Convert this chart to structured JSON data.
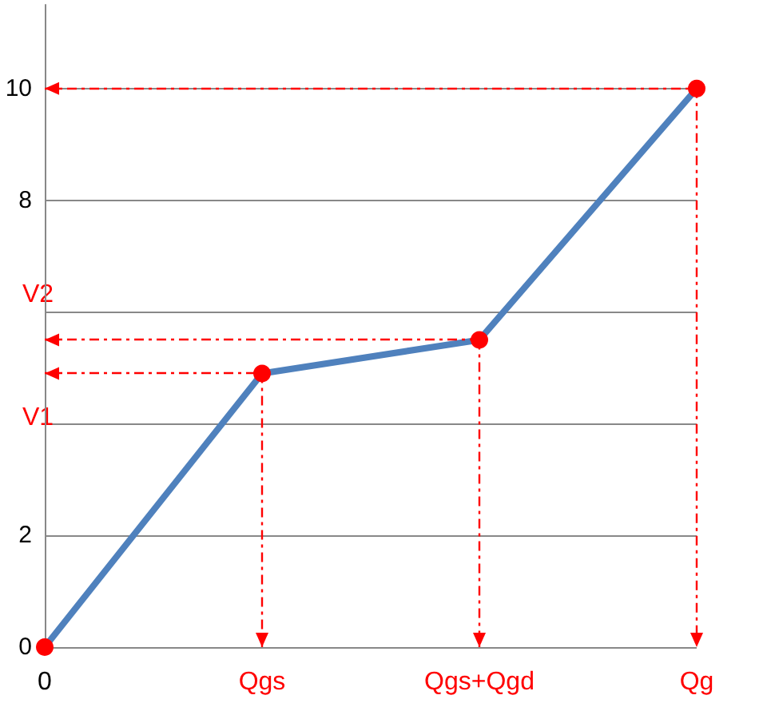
{
  "chart_data": {
    "type": "line",
    "categories": [
      "0",
      "Qgs",
      "Qgs+Qgd",
      "Qg"
    ],
    "series": [
      {
        "color": "#4f81bd",
        "values": [
          0,
          4.9,
          5.5,
          10
        ]
      }
    ],
    "ylim": [
      0,
      11.5
    ],
    "yticks": [
      0,
      2,
      {
        "value": 4,
        "label": null
      },
      {
        "value": 6,
        "label": null
      },
      8,
      10
    ],
    "grid": "y",
    "marker": "circle",
    "line_style": "solid",
    "ref_lines": [
      {
        "axis": "y",
        "value": 4.9,
        "label": "V1",
        "color": "#ff0000",
        "line_style": "dashed"
      },
      {
        "axis": "y",
        "value": 5.5,
        "label": "V2",
        "color": "#ff0000",
        "line_style": "dashed"
      },
      {
        "axis": "y",
        "value": 10,
        "color": "#ff0000",
        "line_style": "dashed"
      }
    ]
  }
}
